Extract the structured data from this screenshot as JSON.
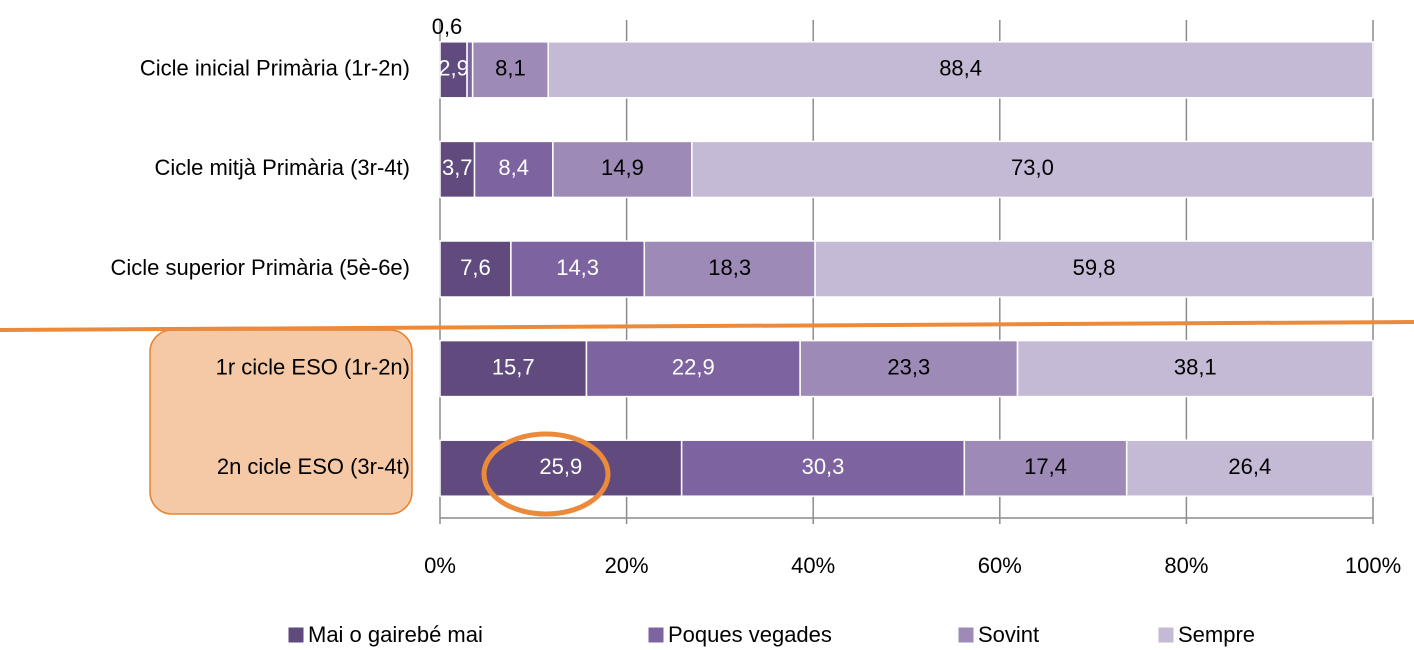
{
  "chart_data": {
    "type": "bar",
    "orientation": "horizontal",
    "stacked": true,
    "categories": [
      "Cicle inicial Primària (1r-2n)",
      "Cicle mitjà Primària (3r-4t)",
      "Cicle superior Primària (5è-6e)",
      "1r cicle ESO (1r-2n)",
      "2n cicle ESO (3r-4t)"
    ],
    "series": [
      {
        "name": "Mai o gairebé mai",
        "color": "#614b7e",
        "values": [
          2.9,
          3.7,
          7.6,
          15.7,
          25.9
        ],
        "value_labels": [
          "2,9",
          "3,7",
          "7,6",
          "15,7",
          "25,9"
        ]
      },
      {
        "name": "Poques vegades",
        "color": "#7d63a0",
        "values": [
          0.6,
          8.4,
          14.3,
          22.9,
          30.3
        ],
        "value_labels": [
          "0,6",
          "8,4",
          "14,3",
          "22,9",
          "30,3"
        ]
      },
      {
        "name": "Sovint",
        "color": "#9d8ab7",
        "values": [
          8.1,
          14.9,
          18.3,
          23.3,
          17.4
        ],
        "value_labels": [
          "8,1",
          "14,9",
          "18,3",
          "23,3",
          "17,4"
        ]
      },
      {
        "name": "Sempre",
        "color": "#c4bad5",
        "values": [
          88.4,
          73.0,
          59.8,
          38.1,
          26.4
        ],
        "value_labels": [
          "88,4",
          "73,0",
          "59,8",
          "38,1",
          "26,4"
        ]
      }
    ],
    "xlim": [
      0,
      100
    ],
    "xticks": [
      {
        "value": 0,
        "label": "0%"
      },
      {
        "value": 20,
        "label": "20%"
      },
      {
        "value": 40,
        "label": "40%"
      },
      {
        "value": 60,
        "label": "60%"
      },
      {
        "value": 80,
        "label": "80%"
      },
      {
        "value": 100,
        "label": "100%"
      }
    ],
    "grid": true,
    "legend": "bottom"
  }
}
